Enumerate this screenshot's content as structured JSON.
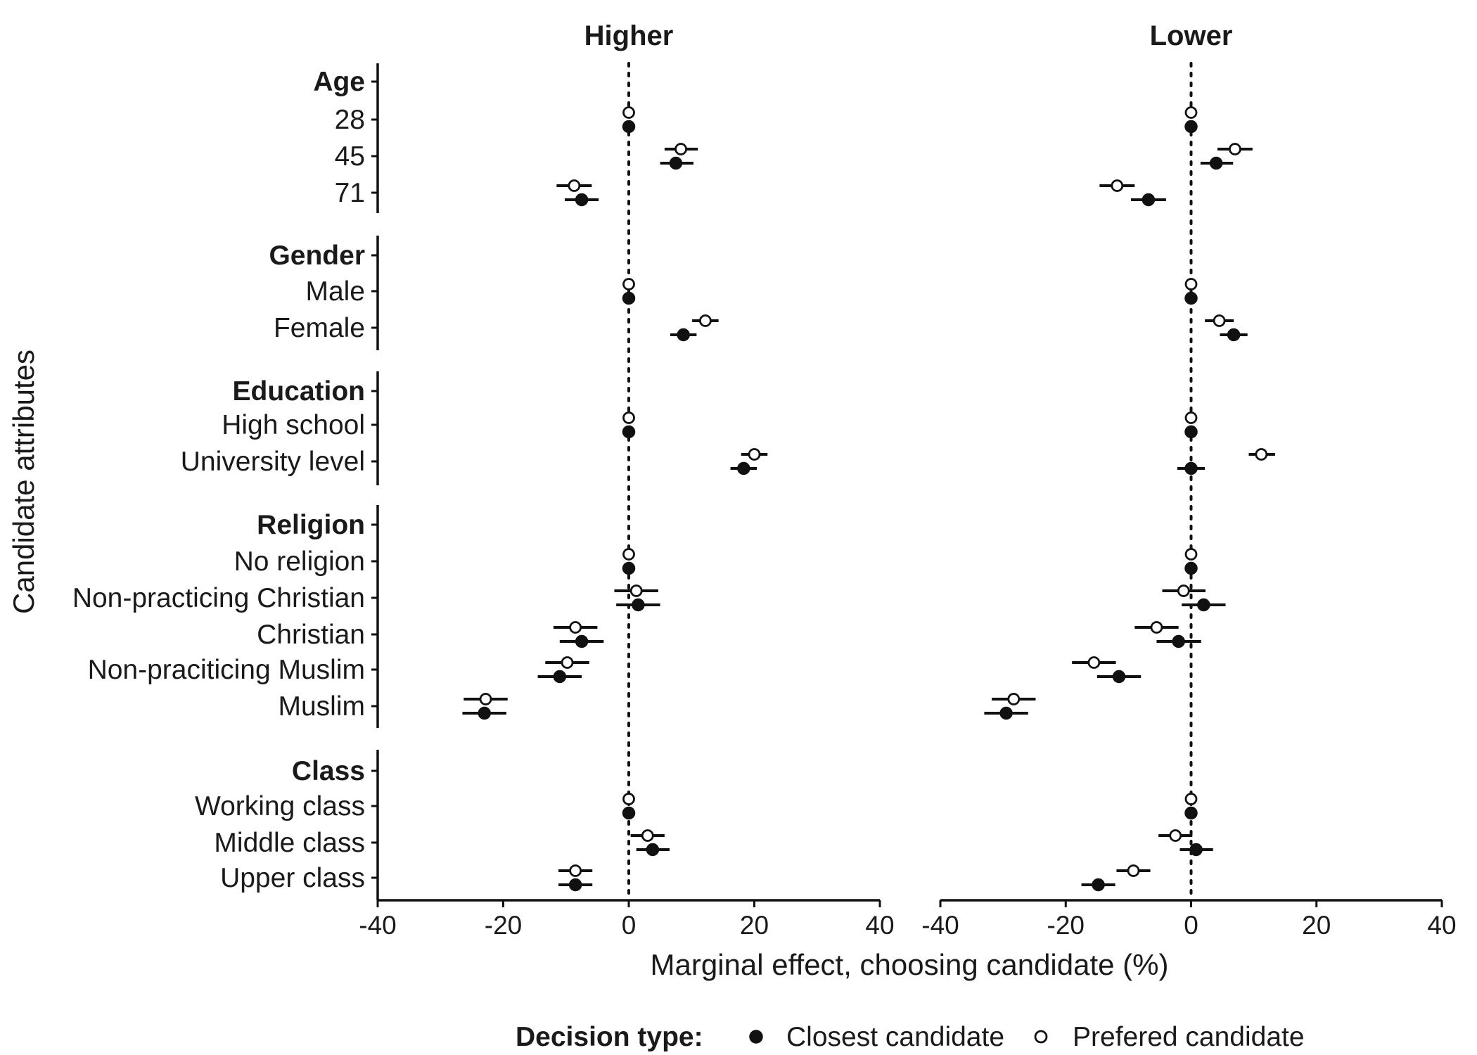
{
  "chart_data": {
    "type": "scatter",
    "subtype": "dot-and-whisker (coefficient plot)",
    "panels": [
      "Higher",
      "Lower"
    ],
    "xlabel": "Marginal effect, choosing candidate (%)",
    "ylabel": "Candidate attributes",
    "xlim": [
      -40,
      40
    ],
    "xticks": [
      "-40",
      "-20",
      "0",
      "20",
      "40"
    ],
    "reference_line_x": 0,
    "legend": {
      "title": "Decision type:",
      "position": "bottom",
      "entries": [
        {
          "label": "Closest candidate",
          "marker": "filled-circle"
        },
        {
          "label": "Prefered candidate",
          "marker": "open-circle"
        }
      ]
    },
    "groups": [
      {
        "header": "Age",
        "rows": [
          {
            "label": "28",
            "reference": true,
            "Higher": {
              "closest": [
                0,
                0,
                0
              ],
              "prefered": [
                0,
                0,
                0
              ]
            },
            "Lower": {
              "closest": [
                0,
                0,
                0
              ],
              "prefered": [
                0,
                0,
                0
              ]
            }
          },
          {
            "label": "45",
            "Higher": {
              "closest": [
                7.5,
                5,
                10.3
              ],
              "prefered": [
                8.3,
                5.7,
                11
              ]
            },
            "Lower": {
              "closest": [
                4,
                1.5,
                6.7
              ],
              "prefered": [
                7,
                4.2,
                9.8
              ]
            }
          },
          {
            "label": "71",
            "Higher": {
              "closest": [
                -7.5,
                -10.2,
                -4.8
              ],
              "prefered": [
                -8.7,
                -11.5,
                -5.9
              ]
            },
            "Lower": {
              "closest": [
                -6.8,
                -9.6,
                -4
              ],
              "prefered": [
                -11.8,
                -14.6,
                -9
              ]
            }
          }
        ]
      },
      {
        "header": "Gender",
        "rows": [
          {
            "label": "Male",
            "reference": true,
            "Higher": {
              "closest": [
                0,
                0,
                0
              ],
              "prefered": [
                0,
                0,
                0
              ]
            },
            "Lower": {
              "closest": [
                0,
                0,
                0
              ],
              "prefered": [
                0,
                0,
                0
              ]
            }
          },
          {
            "label": "Female",
            "Higher": {
              "closest": [
                8.7,
                6.6,
                10.8
              ],
              "prefered": [
                12.2,
                10.1,
                14.3
              ]
            },
            "Lower": {
              "closest": [
                6.8,
                4.6,
                9
              ],
              "prefered": [
                4.5,
                2.2,
                6.8
              ]
            }
          }
        ]
      },
      {
        "header": "Education",
        "rows": [
          {
            "label": "High school",
            "reference": true,
            "Higher": {
              "closest": [
                0,
                0,
                0
              ],
              "prefered": [
                0,
                0,
                0
              ]
            },
            "Lower": {
              "closest": [
                0,
                0,
                0
              ],
              "prefered": [
                0,
                0,
                0
              ]
            }
          },
          {
            "label": "University level",
            "Higher": {
              "closest": [
                18.3,
                16.2,
                20.4
              ],
              "prefered": [
                20,
                17.9,
                22.1
              ]
            },
            "Lower": {
              "closest": [
                0,
                -2.2,
                2.2
              ],
              "prefered": [
                11.2,
                9.2,
                13.4
              ]
            }
          }
        ]
      },
      {
        "header": "Religion",
        "rows": [
          {
            "label": "No religion",
            "reference": true,
            "Higher": {
              "closest": [
                0,
                0,
                0
              ],
              "prefered": [
                0,
                0,
                0
              ]
            },
            "Lower": {
              "closest": [
                0,
                0,
                0
              ],
              "prefered": [
                0,
                0,
                0
              ]
            }
          },
          {
            "label": "Non-practicing Christian",
            "Higher": {
              "closest": [
                1.5,
                -2,
                5
              ],
              "prefered": [
                1.2,
                -2.3,
                4.7
              ]
            },
            "Lower": {
              "closest": [
                2,
                -1.5,
                5.5
              ],
              "prefered": [
                -1.2,
                -4.6,
                2.3
              ]
            }
          },
          {
            "label": "Christian",
            "Higher": {
              "closest": [
                -7.5,
                -11,
                -4
              ],
              "prefered": [
                -8.5,
                -12,
                -5
              ]
            },
            "Lower": {
              "closest": [
                -2,
                -5.5,
                1.6
              ],
              "prefered": [
                -5.5,
                -9,
                -2
              ]
            }
          },
          {
            "label": "Non-praciticing Muslim",
            "Higher": {
              "closest": [
                -11,
                -14.5,
                -7.5
              ],
              "prefered": [
                -9.8,
                -13.3,
                -6.3
              ]
            },
            "Lower": {
              "closest": [
                -11.5,
                -15,
                -8
              ],
              "prefered": [
                -15.5,
                -19,
                -12
              ]
            }
          },
          {
            "label": "Muslim",
            "Higher": {
              "closest": [
                -23,
                -26.5,
                -19.5
              ],
              "prefered": [
                -22.8,
                -26.3,
                -19.3
              ]
            },
            "Lower": {
              "closest": [
                -29.5,
                -33,
                -26
              ],
              "prefered": [
                -28.3,
                -31.8,
                -24.8
              ]
            }
          }
        ]
      },
      {
        "header": "Class",
        "rows": [
          {
            "label": "Working class",
            "reference": true,
            "Higher": {
              "closest": [
                0,
                0,
                0
              ],
              "prefered": [
                0,
                0,
                0
              ]
            },
            "Lower": {
              "closest": [
                0,
                0,
                0
              ],
              "prefered": [
                0,
                0,
                0
              ]
            }
          },
          {
            "label": "Middle class",
            "Higher": {
              "closest": [
                3.8,
                1.2,
                6.5
              ],
              "prefered": [
                3,
                0.3,
                5.7
              ]
            },
            "Lower": {
              "closest": [
                0.8,
                -1.8,
                3.5
              ],
              "prefered": [
                -2.5,
                -5.2,
                0.2
              ]
            }
          },
          {
            "label": "Upper class",
            "Higher": {
              "closest": [
                -8.5,
                -11.2,
                -5.8
              ],
              "prefered": [
                -8.5,
                -11.2,
                -5.8
              ]
            },
            "Lower": {
              "closest": [
                -14.8,
                -17.5,
                -12.1
              ],
              "prefered": [
                -9.2,
                -11.9,
                -6.5
              ]
            }
          }
        ]
      }
    ]
  }
}
